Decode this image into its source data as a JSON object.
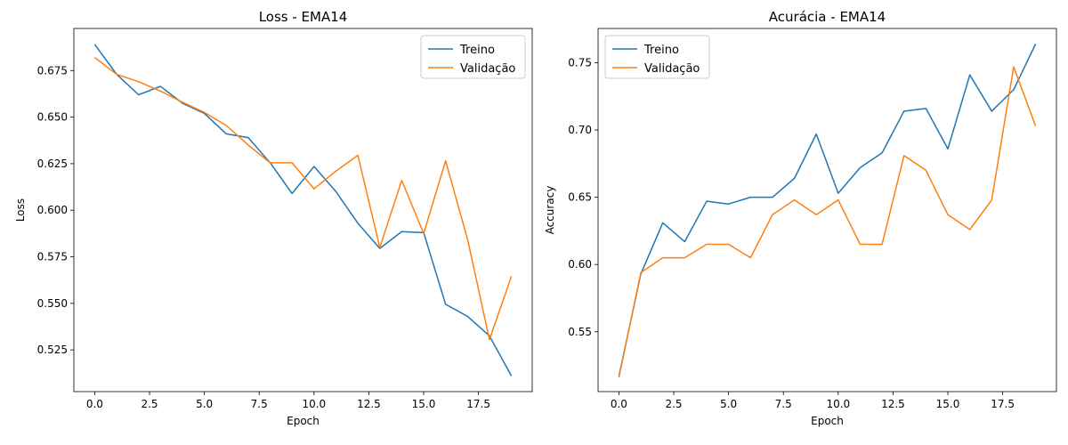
{
  "chart_data": [
    {
      "type": "line",
      "title": "Loss - EMA14",
      "xlabel": "Epoch",
      "ylabel": "Loss",
      "x": [
        0,
        1,
        2,
        3,
        4,
        5,
        6,
        7,
        8,
        9,
        10,
        11,
        12,
        13,
        14,
        15,
        16,
        17,
        18,
        19
      ],
      "xlim": [
        -0.95,
        19.95
      ],
      "ylim": [
        0.5026,
        0.6976
      ],
      "xticks": [
        0,
        2.5,
        5,
        7.5,
        10,
        12.5,
        15,
        17.5
      ],
      "xtick_labels": [
        "0.0",
        "2.5",
        "5.0",
        "7.5",
        "10.0",
        "12.5",
        "15.0",
        "17.5"
      ],
      "yticks": [
        0.525,
        0.55,
        0.575,
        0.6,
        0.625,
        0.65,
        0.675
      ],
      "ytick_labels": [
        "0.525",
        "0.550",
        "0.575",
        "0.600",
        "0.625",
        "0.650",
        "0.675"
      ],
      "grid": false,
      "legend_position": "upper right",
      "series": [
        {
          "name": "Treino",
          "color": "#1f77b4",
          "values": [
            0.689,
            0.673,
            0.662,
            0.6665,
            0.6575,
            0.652,
            0.641,
            0.639,
            0.6255,
            0.609,
            0.6235,
            0.61,
            0.593,
            0.5795,
            0.5885,
            0.588,
            0.5495,
            0.543,
            0.5325,
            0.511
          ]
        },
        {
          "name": "Validação",
          "color": "#ff7f0e",
          "values": [
            0.682,
            0.673,
            0.669,
            0.664,
            0.658,
            0.6525,
            0.6455,
            0.635,
            0.6255,
            0.6255,
            0.6115,
            0.621,
            0.6295,
            0.58,
            0.616,
            0.5875,
            0.6265,
            0.5845,
            0.5305,
            0.5645
          ]
        }
      ]
    },
    {
      "type": "line",
      "title": "Acurácia - EMA14",
      "xlabel": "Epoch",
      "ylabel": "Accuracy",
      "x": [
        0,
        1,
        2,
        3,
        4,
        5,
        6,
        7,
        8,
        9,
        10,
        11,
        12,
        13,
        14,
        15,
        16,
        17,
        18,
        19
      ],
      "xlim": [
        -0.95,
        19.95
      ],
      "ylim": [
        0.5055,
        0.7755
      ],
      "xticks": [
        0,
        2.5,
        5,
        7.5,
        10,
        12.5,
        15,
        17.5
      ],
      "xtick_labels": [
        "0.0",
        "2.5",
        "5.0",
        "7.5",
        "10.0",
        "12.5",
        "15.0",
        "17.5"
      ],
      "yticks": [
        0.55,
        0.6,
        0.65,
        0.7,
        0.75
      ],
      "ytick_labels": [
        "0.55",
        "0.60",
        "0.65",
        "0.70",
        "0.75"
      ],
      "grid": false,
      "legend_position": "upper left",
      "series": [
        {
          "name": "Treino",
          "color": "#1f77b4",
          "values": [
            0.517,
            0.593,
            0.631,
            0.617,
            0.647,
            0.645,
            0.65,
            0.65,
            0.664,
            0.697,
            0.653,
            0.672,
            0.683,
            0.714,
            0.716,
            0.686,
            0.741,
            0.714,
            0.73,
            0.764
          ]
        },
        {
          "name": "Validação",
          "color": "#ff7f0e",
          "values": [
            0.516,
            0.594,
            0.605,
            0.605,
            0.615,
            0.615,
            0.605,
            0.637,
            0.648,
            0.637,
            0.648,
            0.615,
            0.615,
            0.681,
            0.67,
            0.637,
            0.626,
            0.648,
            0.747,
            0.703
          ]
        }
      ]
    }
  ]
}
